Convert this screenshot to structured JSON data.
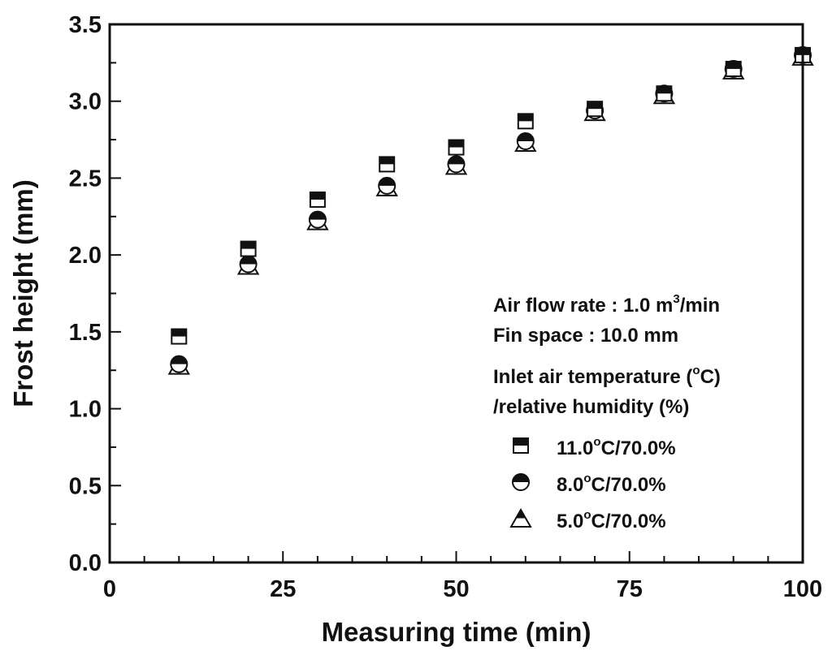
{
  "chart_data": {
    "type": "scatter",
    "xlabel": "Measuring time (min)",
    "ylabel": "Frost height (mm)",
    "xlim": [
      0,
      100
    ],
    "ylim": [
      0.0,
      3.5
    ],
    "x_ticks": [
      0,
      25,
      50,
      75,
      100
    ],
    "x_minor_step": 5,
    "y_ticks": [
      "0.0",
      "0.5",
      "1.0",
      "1.5",
      "2.0",
      "2.5",
      "3.0",
      "3.5"
    ],
    "y_minor_step": 0.25,
    "grid": false,
    "legend_position": "bottom-right",
    "annotations": {
      "line1_pre": "Air flow rate : 1.0 m",
      "line1_sup": "3",
      "line1_post": "/min",
      "line2": "Fin space : 10.0 mm",
      "line3_pre": "Inlet air temperature (",
      "line3_sup": "o",
      "line3_post": "C)",
      "line4": "/relative humidity (%)"
    },
    "series": [
      {
        "name_pre": "11.0",
        "name_sup": "o",
        "name_post": "C/70.0%",
        "marker": "half-square",
        "x": [
          10,
          20,
          30,
          40,
          50,
          60,
          70,
          80,
          90,
          100
        ],
        "y": [
          1.47,
          2.04,
          2.36,
          2.59,
          2.7,
          2.87,
          2.95,
          3.05,
          3.21,
          3.3
        ]
      },
      {
        "name_pre": "8.0",
        "name_sup": "o",
        "name_post": "C/70.0%",
        "marker": "half-circle",
        "x": [
          10,
          20,
          30,
          40,
          50,
          60,
          70,
          80,
          90,
          100
        ],
        "y": [
          1.29,
          1.94,
          2.23,
          2.45,
          2.59,
          2.74,
          2.94,
          3.05,
          3.21,
          3.3
        ]
      },
      {
        "name_pre": "5.0",
        "name_sup": "o",
        "name_post": "C/70.0%",
        "marker": "half-triangle",
        "x": [
          10,
          20,
          30,
          40,
          50,
          60,
          70,
          80,
          90,
          100
        ],
        "y": [
          1.29,
          1.94,
          2.23,
          2.45,
          2.59,
          2.74,
          2.94,
          3.05,
          3.21,
          3.3
        ]
      }
    ]
  }
}
